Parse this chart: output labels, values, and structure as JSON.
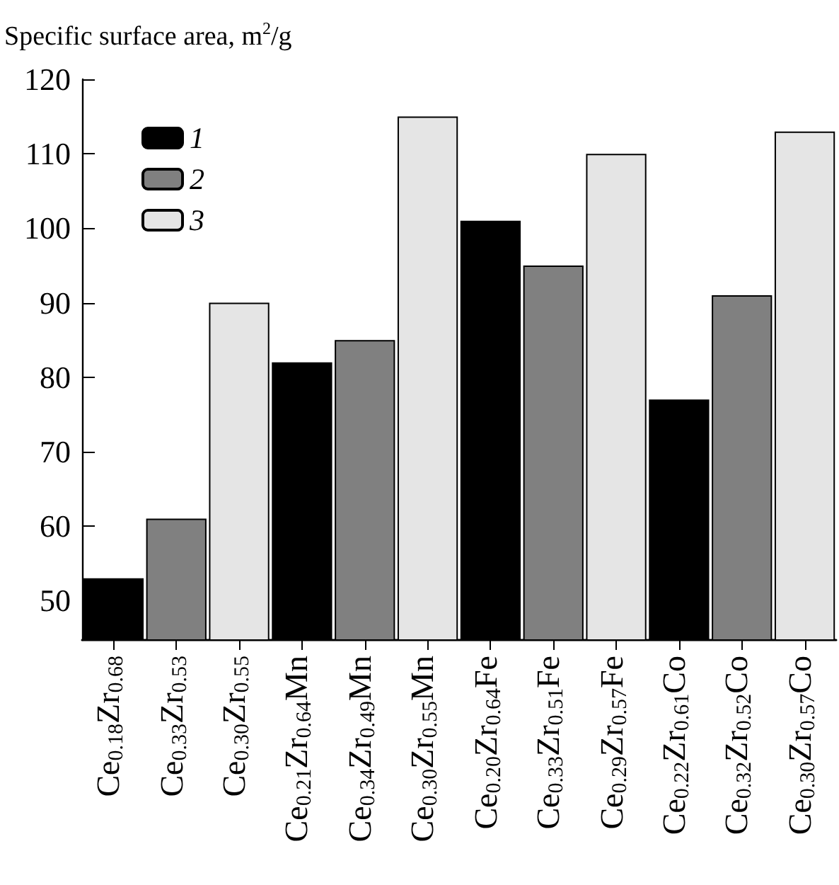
{
  "chart_data": {
    "type": "bar",
    "ylabel": "Specific surface area, m$^{2}$/g",
    "categories": [
      "Ce$_{0.18}$Zr$_{0.68}$",
      "Ce$_{0.33}$Zr$_{0.53}$",
      "Ce$_{0.30}$Zr$_{0.55}$",
      "Ce$_{0.21}$Zr$_{0.64}$Mn",
      "Ce$_{0.34}$Zr$_{0.49}$Mn",
      "Ce$_{0.30}$Zr$_{0.55}$Mn",
      "Ce$_{0.20}$Zr$_{0.64}$Fe",
      "Ce$_{0.33}$Zr$_{0.51}$Fe",
      "Ce$_{0.29}$Zr$_{0.57}$Fe",
      "Ce$_{0.22}$Zr$_{0.61}$Co",
      "Ce$_{0.32}$Zr$_{0.52}$Co",
      "Ce$_{0.30}$Zr$_{0.57}$Co"
    ],
    "series": [
      {
        "name": "1",
        "color": "#000000",
        "values": [
          53,
          null,
          null,
          82,
          null,
          null,
          101,
          null,
          null,
          77,
          null,
          null
        ]
      },
      {
        "name": "2",
        "color": "#808080",
        "values": [
          null,
          61,
          null,
          null,
          85,
          null,
          null,
          95,
          null,
          null,
          91,
          null
        ]
      },
      {
        "name": "3",
        "color": "#e5e5e5",
        "values": [
          null,
          null,
          90,
          null,
          null,
          115,
          null,
          null,
          110,
          null,
          null,
          113
        ]
      }
    ],
    "stacked": true,
    "ylim": [
      44.7,
      120
    ],
    "yticks": [
      50,
      60,
      70,
      80,
      90,
      100,
      110,
      120
    ],
    "grid": false,
    "legend": "top left"
  }
}
